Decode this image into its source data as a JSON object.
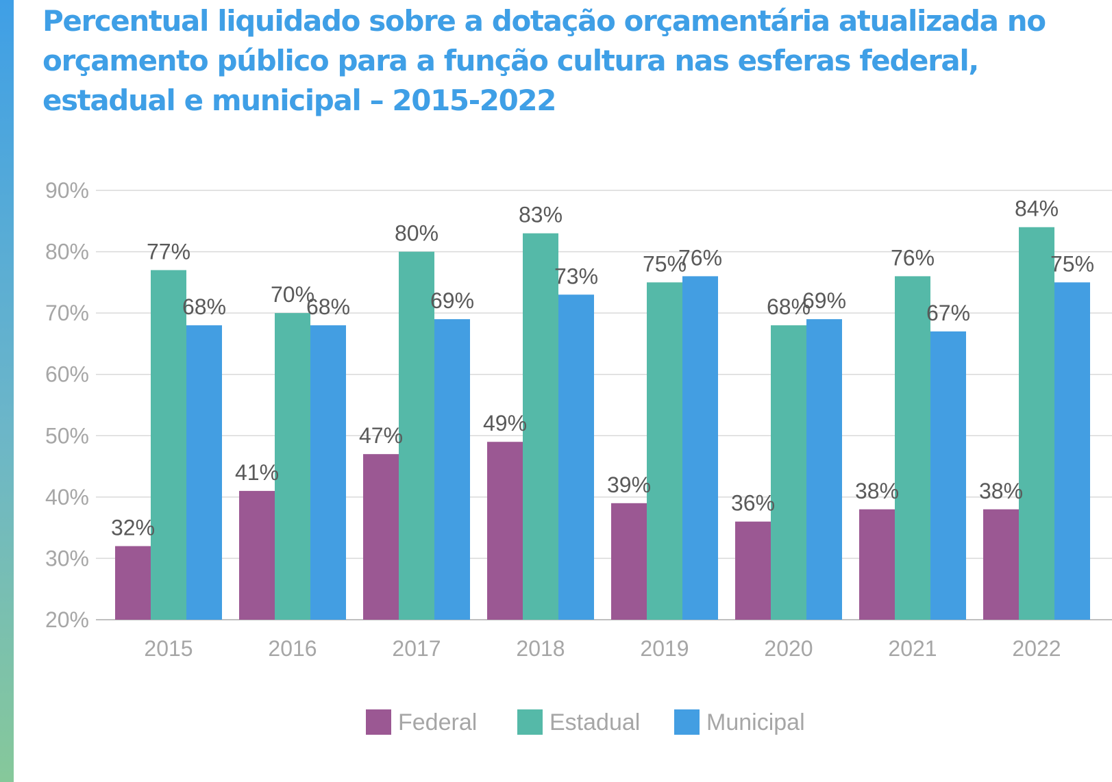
{
  "title": "Percentual liquidado sobre a dotação orçamentária atualizada no orçamento público para a função cultura nas esferas federal, estadual e municipal – 2015-2022",
  "chart_data": {
    "type": "bar",
    "title": "Percentual liquidado sobre a dotação orçamentária atualizada no orçamento público para a função cultura nas esferas federal, estadual e municipal – 2015-2022",
    "categories": [
      "2015",
      "2016",
      "2017",
      "2018",
      "2019",
      "2020",
      "2021",
      "2022"
    ],
    "series": [
      {
        "name": "Federal",
        "color": "#9b5893",
        "values": [
          32,
          41,
          47,
          49,
          39,
          36,
          38,
          38
        ],
        "labels": [
          "32%",
          "41%",
          "47%",
          "49%",
          "39%",
          "36%",
          "38%",
          "38%"
        ]
      },
      {
        "name": "Estadual",
        "color": "#55b9a8",
        "values": [
          77,
          70,
          80,
          83,
          75,
          68,
          76,
          84
        ],
        "labels": [
          "77%",
          "70%",
          "80%",
          "83%",
          "75%",
          "68%",
          "76%",
          "84%"
        ]
      },
      {
        "name": "Municipal",
        "color": "#439ee2",
        "values": [
          68,
          68,
          69,
          73,
          76,
          69,
          67,
          75
        ],
        "labels": [
          "68%",
          "68%",
          "69%",
          "73%",
          "76%",
          "69%",
          "67%",
          "75%"
        ]
      }
    ],
    "ylim": [
      20,
      90
    ],
    "yticks": [
      20,
      30,
      40,
      50,
      60,
      70,
      80,
      90
    ],
    "ytick_labels": [
      "20%",
      "30%",
      "40%",
      "50%",
      "60%",
      "70%",
      "80%",
      "90%"
    ],
    "xlabel": "",
    "ylabel": "",
    "grid": true,
    "legend_position": "bottom-center"
  }
}
